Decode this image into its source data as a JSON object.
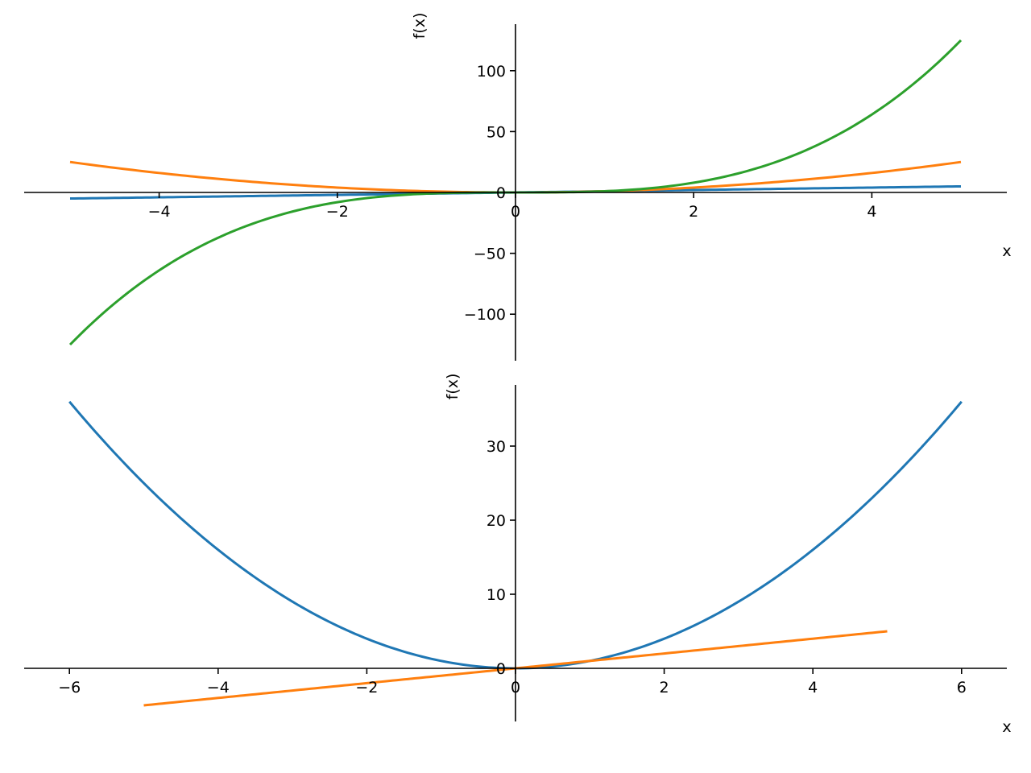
{
  "chart_data": [
    {
      "type": "line",
      "title": "",
      "xlabel": "x",
      "ylabel": "f(x)",
      "xlim": [
        -5.5,
        5.5
      ],
      "ylim": [
        -137.5,
        137.5
      ],
      "xticks": [
        -4,
        -2,
        0,
        2,
        4
      ],
      "xtick_labels": [
        "−4",
        "−2",
        "0",
        "2",
        "4"
      ],
      "yticks": [
        -100,
        -50,
        0,
        50,
        100
      ],
      "ytick_labels": [
        "−100",
        "−50",
        "0",
        "50",
        "100"
      ],
      "grid": false,
      "series": [
        {
          "name": "x",
          "expr": "x",
          "domain": [
            -5,
            5
          ],
          "color": "#1f77b4"
        },
        {
          "name": "x^2",
          "expr": "x^2",
          "domain": [
            -5,
            5
          ],
          "color": "#ff7f0e"
        },
        {
          "name": "x^3",
          "expr": "x^3",
          "domain": [
            -5,
            5
          ],
          "color": "#2ca02c"
        }
      ]
    },
    {
      "type": "line",
      "title": "",
      "xlabel": "x",
      "ylabel": "f(x)",
      "xlim": [
        -6.6,
        6.6
      ],
      "ylim": [
        -7.2,
        38.3
      ],
      "xticks": [
        -6,
        -4,
        -2,
        0,
        2,
        4,
        6
      ],
      "xtick_labels": [
        "−6",
        "−4",
        "−2",
        "0",
        "2",
        "4",
        "6"
      ],
      "yticks": [
        0,
        10,
        20,
        30
      ],
      "ytick_labels": [
        "0",
        "10",
        "20",
        "30"
      ],
      "grid": false,
      "series": [
        {
          "name": "x^2",
          "expr": "x^2",
          "domain": [
            -6,
            6
          ],
          "color": "#1f77b4"
        },
        {
          "name": "x",
          "expr": "x",
          "domain": [
            -5,
            5
          ],
          "color": "#ff7f0e"
        }
      ]
    }
  ]
}
